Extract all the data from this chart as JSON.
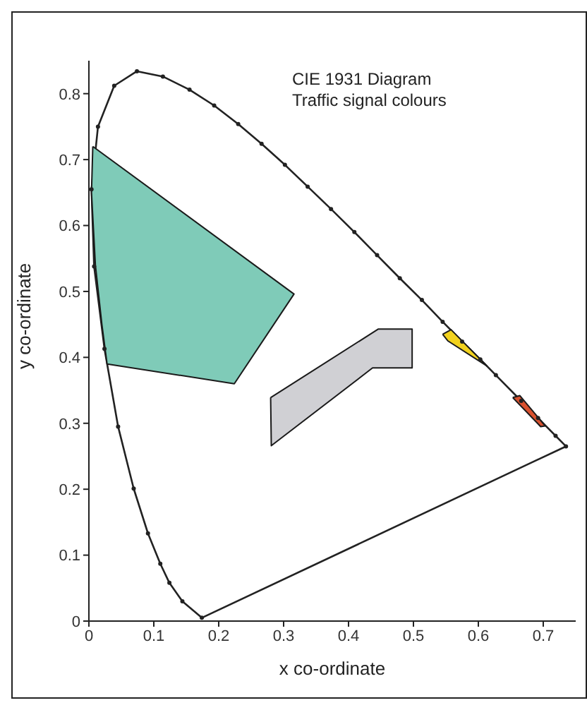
{
  "chart_data": {
    "type": "line",
    "title": "CIE 1931 Diagram",
    "subtitle": "Traffic signal colours",
    "xlabel": "x co-ordinate",
    "ylabel": "y co-ordinate",
    "xlim": [
      0,
      0.75
    ],
    "ylim": [
      0,
      0.85
    ],
    "xticks": [
      0,
      0.1,
      0.2,
      0.3,
      0.4,
      0.5,
      0.6,
      0.7
    ],
    "yticks": [
      0,
      0.1,
      0.2,
      0.3,
      0.4,
      0.5,
      0.6,
      0.7,
      0.8
    ],
    "grid": false,
    "legend": false,
    "series": [
      {
        "type": "area",
        "color": "#7fcbb8",
        "x": [
          0.006,
          0.316,
          0.224,
          0.028,
          0.02,
          0.01,
          0.004
        ],
        "values": [
          0.72,
          0.496,
          0.36,
          0.39,
          0.45,
          0.54,
          0.65
        ]
      },
      {
        "type": "area",
        "color": "#d0d0d4",
        "x": [
          0.28,
          0.446,
          0.498,
          0.498,
          0.437,
          0.281
        ],
        "values": [
          0.339,
          0.443,
          0.443,
          0.384,
          0.384,
          0.266
        ]
      },
      {
        "type": "area",
        "color": "#f2d21e",
        "x": [
          0.545,
          0.558,
          0.613,
          0.553
        ],
        "values": [
          0.435,
          0.442,
          0.387,
          0.425
        ]
      },
      {
        "type": "area",
        "color": "#d8512f",
        "x": [
          0.653,
          0.664,
          0.703,
          0.696
        ],
        "values": [
          0.339,
          0.342,
          0.296,
          0.295
        ]
      },
      {
        "type": "line",
        "color": "#222222",
        "marker": "circle",
        "x": [
          0.174,
          0.144,
          0.124,
          0.11,
          0.091,
          0.069,
          0.045,
          0.024,
          0.008,
          0.004,
          0.014,
          0.039,
          0.074,
          0.114,
          0.155,
          0.193,
          0.23,
          0.266,
          0.302,
          0.337,
          0.373,
          0.409,
          0.444,
          0.479,
          0.513,
          0.545,
          0.575,
          0.603,
          0.627,
          0.666,
          0.692,
          0.719,
          0.735
        ],
        "values": [
          0.005,
          0.03,
          0.058,
          0.087,
          0.133,
          0.201,
          0.295,
          0.413,
          0.538,
          0.655,
          0.75,
          0.812,
          0.834,
          0.826,
          0.806,
          0.782,
          0.754,
          0.724,
          0.692,
          0.659,
          0.625,
          0.59,
          0.555,
          0.52,
          0.487,
          0.454,
          0.424,
          0.397,
          0.373,
          0.334,
          0.308,
          0.281,
          0.265
        ]
      },
      {
        "type": "line",
        "color": "#222222",
        "x": [
          0.174,
          0.735
        ],
        "values": [
          0.005,
          0.265
        ]
      }
    ]
  }
}
